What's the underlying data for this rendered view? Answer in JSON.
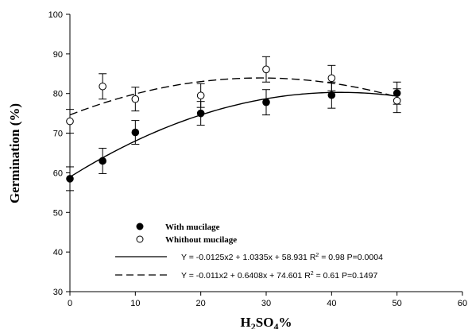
{
  "chart_data": {
    "type": "scatter",
    "xlabel_main": "H",
    "xlabel_sub1": "2",
    "xlabel_mid": "SO",
    "xlabel_sub2": "4",
    "xlabel_end": "%",
    "ylabel": "Germination (%)",
    "xlim": [
      0,
      60
    ],
    "ylim": [
      30,
      100
    ],
    "xticks": [
      0,
      10,
      20,
      30,
      40,
      50,
      60
    ],
    "yticks": [
      30,
      40,
      50,
      60,
      70,
      80,
      90,
      100
    ],
    "grid": false,
    "series": [
      {
        "name": "With mucilage",
        "marker": "filled-circle",
        "color": "#000000",
        "x": [
          0,
          5,
          10,
          20,
          30,
          40,
          50
        ],
        "y": [
          58.5,
          63.0,
          70.2,
          75.0,
          77.8,
          79.6,
          80.1
        ],
        "err": [
          3.0,
          3.2,
          3.0,
          3.0,
          3.2,
          3.3,
          2.8
        ],
        "fit": {
          "a": -0.0125,
          "b": 1.0335,
          "c": 58.931,
          "style": "solid",
          "equation": "Y = -0.0125x2 + 1.0335x + 58.931",
          "r2_label": "R",
          "r2_sup": "2",
          "r2_value": " = 0.98",
          "p": "P=0.0004"
        }
      },
      {
        "name": "Whithout mucilage",
        "marker": "open-circle",
        "color": "#000000",
        "x": [
          0,
          5,
          10,
          20,
          30,
          40,
          50
        ],
        "y": [
          73.0,
          81.8,
          78.6,
          79.5,
          86.1,
          83.9,
          78.2
        ],
        "err": [
          3.0,
          3.2,
          3.0,
          3.0,
          3.2,
          3.2,
          3.0
        ],
        "fit": {
          "a": -0.011,
          "b": 0.6408,
          "c": 74.601,
          "style": "dashed",
          "equation": "Y = -0.011x2 + 0.6408x + 74.601",
          "r2_label": "R",
          "r2_sup": "2",
          "r2_value": " = 0.61",
          "p": "P=0.1497"
        }
      }
    ],
    "legend_placement": "bottom-center"
  }
}
